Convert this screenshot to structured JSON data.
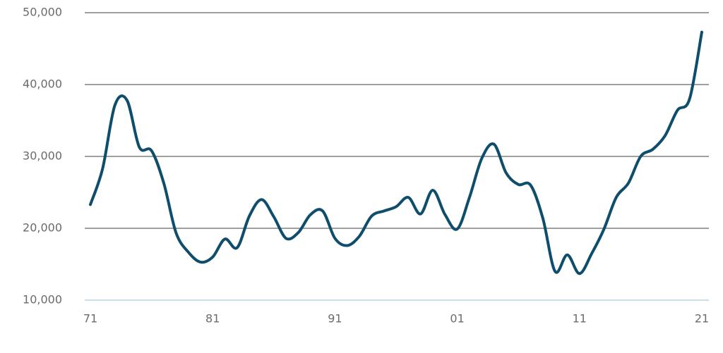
{
  "chart_data": {
    "type": "line",
    "categories": [
      "71",
      null,
      null,
      null,
      null,
      null,
      null,
      null,
      null,
      null,
      "81",
      null,
      null,
      null,
      null,
      null,
      null,
      null,
      null,
      null,
      "91",
      null,
      null,
      null,
      null,
      null,
      null,
      null,
      null,
      null,
      "01",
      null,
      null,
      null,
      null,
      null,
      null,
      null,
      null,
      null,
      "11",
      null,
      null,
      null,
      null,
      null,
      null,
      null,
      null,
      null,
      "21"
    ],
    "values": [
      23300,
      28300,
      37100,
      37800,
      31300,
      30800,
      26300,
      19400,
      16700,
      15300,
      16000,
      18500,
      17300,
      21700,
      24000,
      21600,
      18600,
      19400,
      21900,
      22400,
      18600,
      17600,
      18900,
      21700,
      22400,
      23000,
      24300,
      22000,
      25300,
      21900,
      19900,
      24300,
      29700,
      31700,
      27700,
      26100,
      26000,
      21400,
      14000,
      16300,
      13700,
      16500,
      19900,
      24300,
      26300,
      30000,
      31000,
      32900,
      36400,
      38000,
      47300
    ],
    "color": "#0e4e6c",
    "ylim": [
      10000,
      50000
    ],
    "yticks": [
      {
        "value": 10000,
        "label": "10,000"
      },
      {
        "value": 20000,
        "label": "20,000"
      },
      {
        "value": 30000,
        "label": "30,000"
      },
      {
        "value": 40000,
        "label": "40,000"
      },
      {
        "value": 50000,
        "label": "50,000"
      }
    ],
    "grid": true,
    "grid_color": "#666666",
    "baseline_color": "#a9c9dd"
  }
}
